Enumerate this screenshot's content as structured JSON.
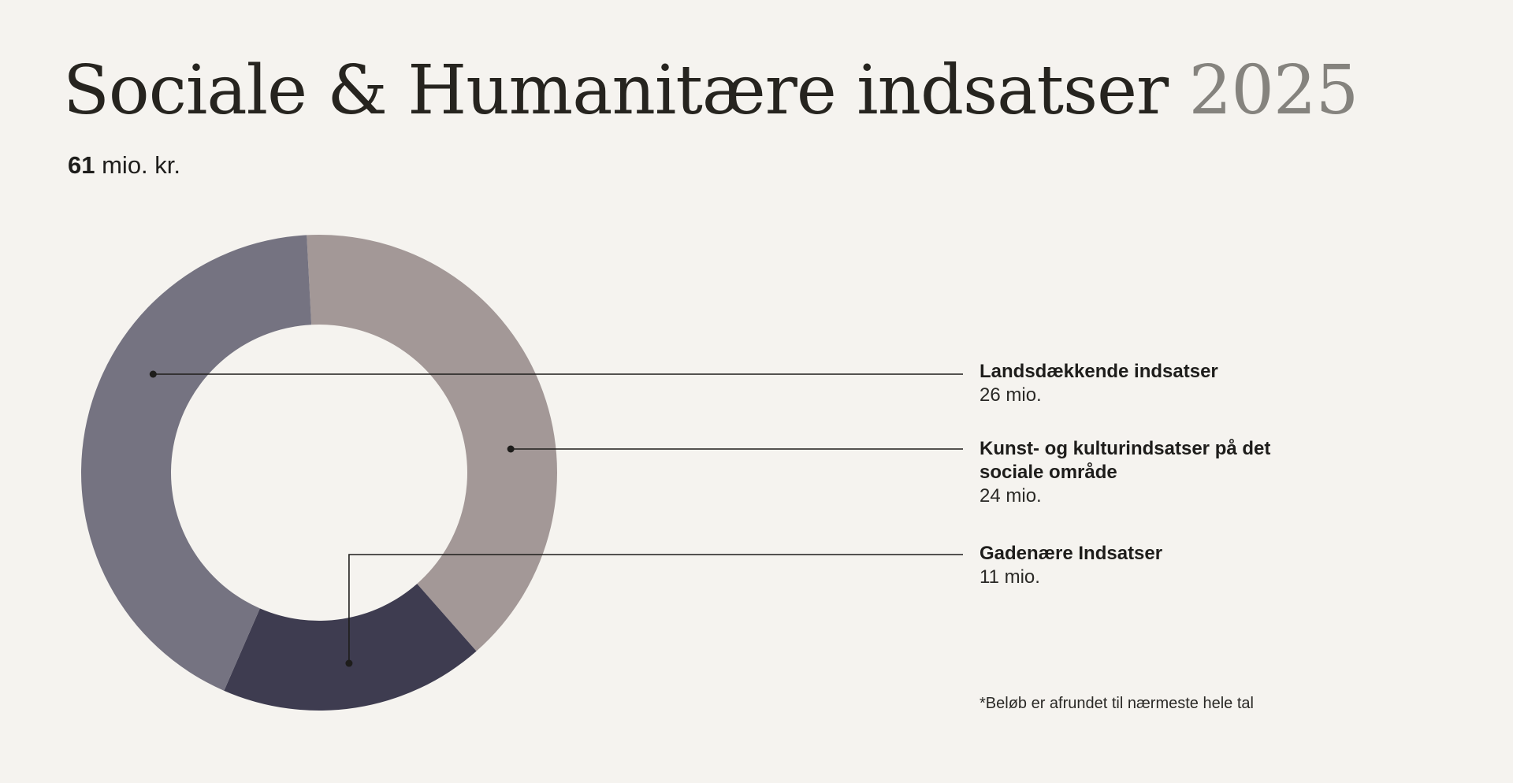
{
  "header": {
    "title_main": "Sociale & Humanitære indsatser",
    "title_year": "2025",
    "total_number": "61",
    "total_unit": "mio. kr."
  },
  "chart_data": {
    "type": "pie",
    "total": 61,
    "unit": "mio. kr.",
    "segments": [
      {
        "label": "Kunst- og kulturindsatser på det sociale område",
        "value": 24,
        "value_label": "24 mio.",
        "color": "#a39897"
      },
      {
        "label": "Gadenære Indsatser",
        "value": 11,
        "value_label": "11 mio.",
        "color": "#3e3c50"
      },
      {
        "label": "Landsdækkende indsatser",
        "value": 26,
        "value_label": "26 mio.",
        "color": "#757381"
      }
    ]
  },
  "legend": [
    {
      "name": "Landsdækkende indsatser",
      "value": "26 mio."
    },
    {
      "name": "Kunst- og kulturindsatser på det sociale område",
      "value": "24 mio."
    },
    {
      "name": "Gadenære Indsatser",
      "value": "11 mio."
    }
  ],
  "footnote": "*Beløb er afrundet til nærmeste hele tal"
}
